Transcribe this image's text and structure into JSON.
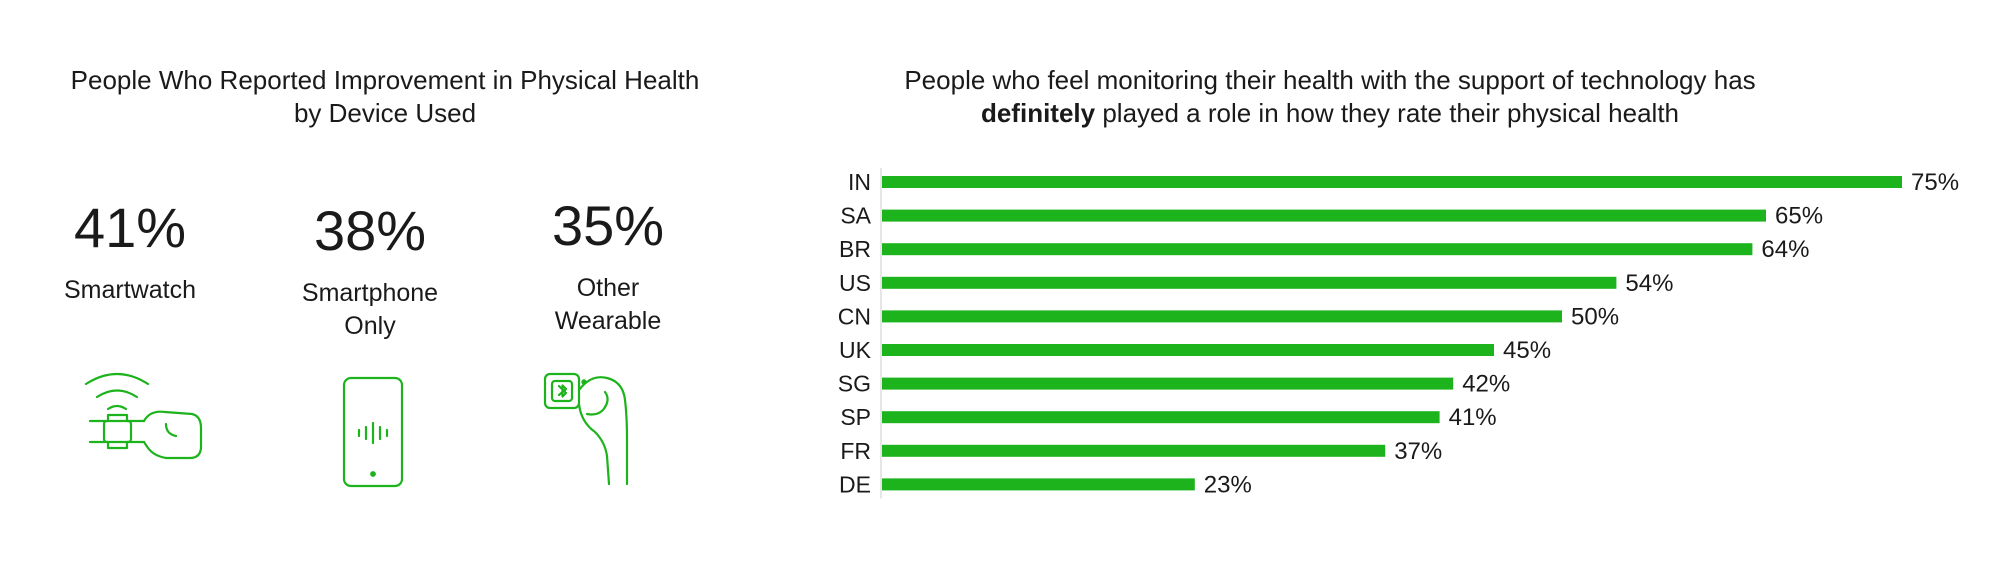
{
  "left_panel": {
    "title_line1": "People Who Reported Improvement in Physical Health",
    "title_line2": "by Device Used",
    "devices": [
      {
        "percent": "41%",
        "label_lines": [
          "Smartwatch"
        ],
        "icon": "smartwatch-icon"
      },
      {
        "percent": "38%",
        "label_lines": [
          "Smartphone",
          "Only"
        ],
        "icon": "smartphone-icon"
      },
      {
        "percent": "35%",
        "label_lines": [
          "Other",
          "Wearable"
        ],
        "icon": "wearable-ring-icon"
      }
    ]
  },
  "right_panel": {
    "title_line1": "People who feel monitoring their health with the support of technology has",
    "title_line2_bold": "definitely",
    "title_line2_rest": " played a role in how they rate their physical health"
  },
  "colors": {
    "accent": "#1cb31c",
    "text": "#1a1a1a",
    "axis": "#cccccc"
  },
  "chart_data": {
    "type": "bar",
    "orientation": "horizontal",
    "categories": [
      "IN",
      "SA",
      "BR",
      "US",
      "CN",
      "UK",
      "SG",
      "SP",
      "FR",
      "DE"
    ],
    "values": [
      75,
      65,
      64,
      54,
      50,
      45,
      42,
      41,
      37,
      23
    ],
    "value_labels": [
      "75%",
      "65%",
      "64%",
      "54%",
      "50%",
      "45%",
      "42%",
      "41%",
      "37%",
      "23%"
    ],
    "xlim": [
      0,
      75
    ],
    "grid": false,
    "legend": "none"
  }
}
